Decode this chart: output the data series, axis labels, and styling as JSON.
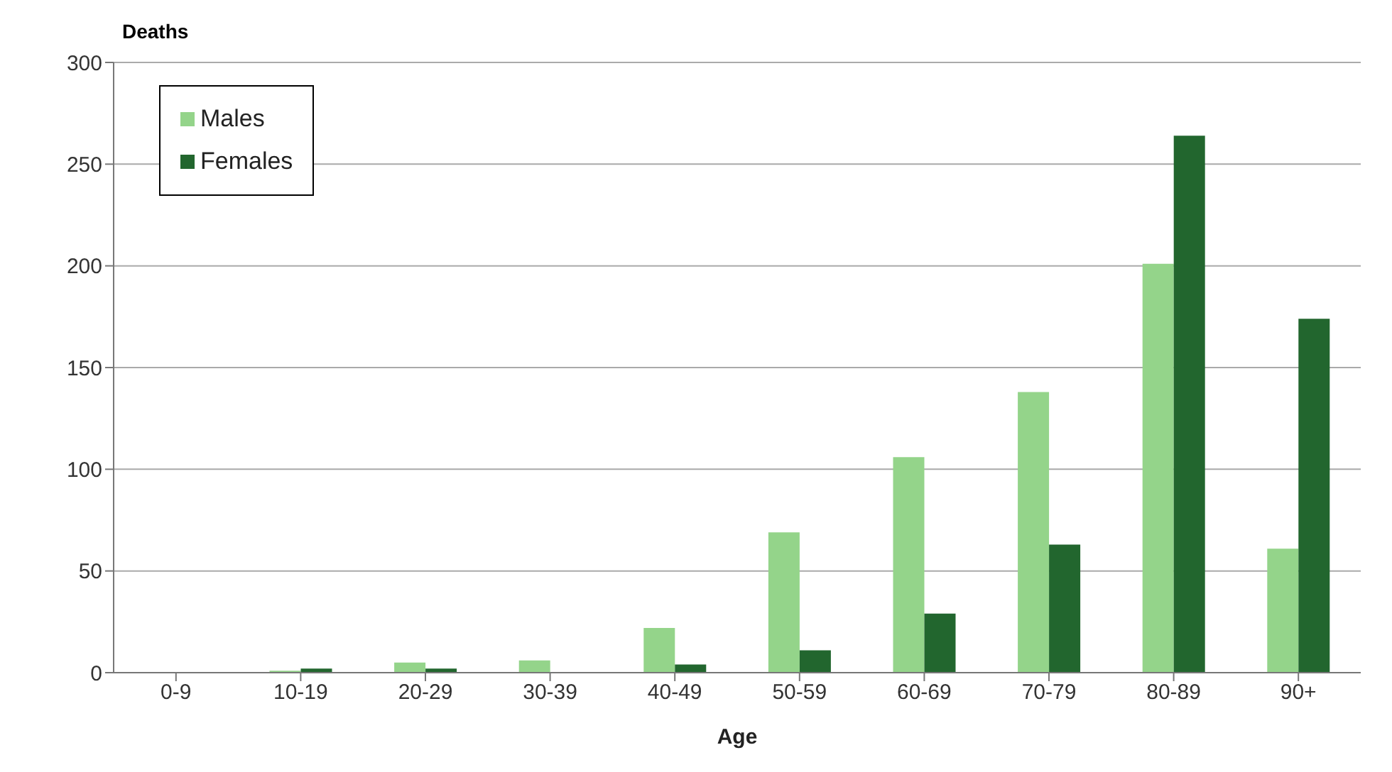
{
  "chart_data": {
    "type": "bar",
    "ylabel": "Deaths",
    "xlabel": "Age",
    "categories": [
      "0-9",
      "10-19",
      "20-29",
      "30-39",
      "40-49",
      "50-59",
      "60-69",
      "70-79",
      "80-89",
      "90+"
    ],
    "series": [
      {
        "name": "Males",
        "color": "#94d48a",
        "values": [
          0,
          1,
          5,
          6,
          22,
          69,
          106,
          138,
          201,
          61
        ]
      },
      {
        "name": "Females",
        "color": "#22662e",
        "values": [
          0,
          2,
          2,
          0,
          4,
          11,
          29,
          63,
          264,
          174
        ]
      }
    ],
    "ylim": [
      0,
      300
    ],
    "yticks": [
      0,
      50,
      100,
      150,
      200,
      250,
      300
    ],
    "grid": "y",
    "legend": "top left"
  }
}
